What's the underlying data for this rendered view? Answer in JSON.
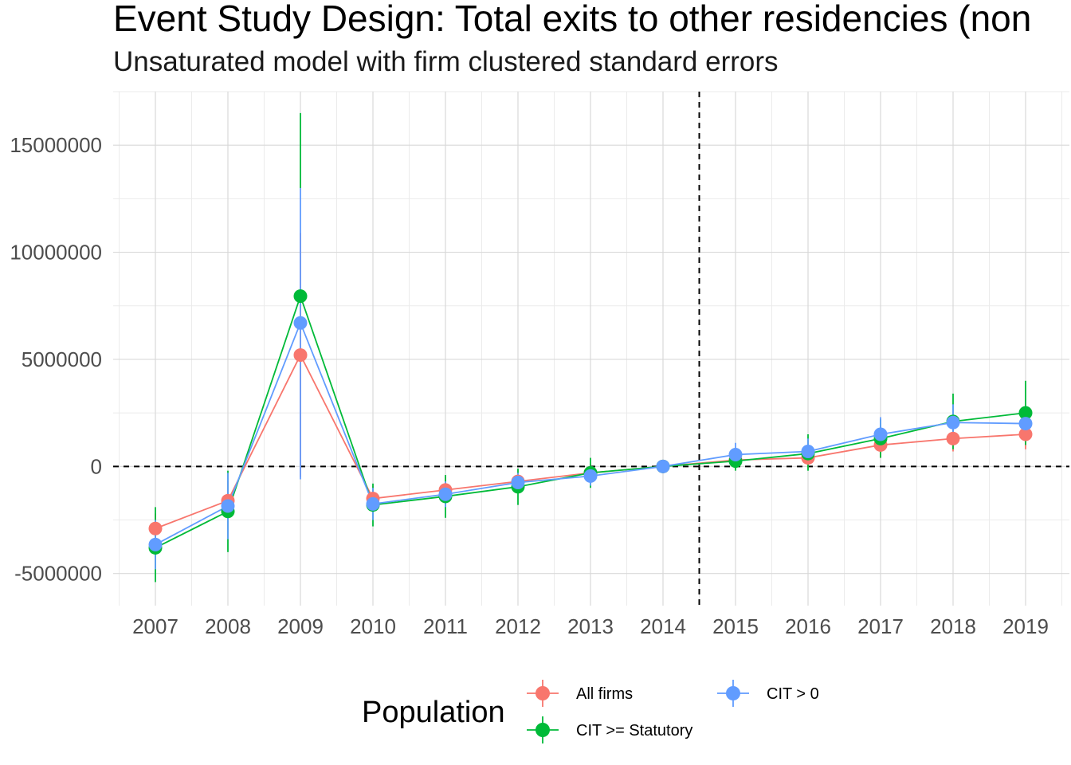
{
  "chart_data": {
    "type": "line",
    "title": "Event Study Design: Total exits to other residencies (non",
    "subtitle": "Unsaturated model with firm clustered standard errors",
    "xlabel": "",
    "ylabel": "",
    "categories": [
      "2007",
      "2008",
      "2009",
      "2010",
      "2011",
      "2012",
      "2013",
      "2014",
      "2015",
      "2016",
      "2017",
      "2018",
      "2019"
    ],
    "y_ticks": [
      -5000000,
      0,
      5000000,
      10000000,
      15000000
    ],
    "y_tick_labels": [
      "-5000000",
      "0",
      "5000000",
      "10000000",
      "15000000"
    ],
    "ylim": [
      -6500000,
      17500000
    ],
    "grid": true,
    "reference_lines": {
      "horizontal_at": 0,
      "vertical_between": [
        "2014",
        "2015"
      ]
    },
    "legend": {
      "title": "Population",
      "placement": "bottom",
      "entries": [
        "All firms",
        "CIT >= Statutory",
        "CIT > 0"
      ]
    },
    "series": [
      {
        "name": "All firms",
        "color": "#F8766D",
        "values": [
          -2900000,
          -1600000,
          5200000,
          -1500000,
          -1100000,
          -700000,
          -300000,
          0,
          300000,
          400000,
          1000000,
          1300000,
          1500000
        ],
        "ci_low": [
          -3600000,
          -2500000,
          -500000,
          -2100000,
          -1700000,
          -1100000,
          -700000,
          0,
          -100000,
          -100000,
          400000,
          700000,
          800000
        ],
        "ci_high": [
          -2200000,
          -700000,
          10900000,
          -900000,
          -500000,
          -300000,
          100000,
          0,
          700000,
          900000,
          1600000,
          1900000,
          2200000
        ]
      },
      {
        "name": "CIT >= Statutory",
        "color": "#00BA38",
        "values": [
          -3800000,
          -2100000,
          7950000,
          -1800000,
          -1400000,
          -950000,
          -300000,
          0,
          250000,
          600000,
          1300000,
          2100000,
          2500000
        ],
        "ci_low": [
          -5400000,
          -4000000,
          13000000,
          -2800000,
          -2400000,
          -1800000,
          -1000000,
          0,
          -200000,
          -200000,
          400000,
          800000,
          1000000
        ],
        "ci_high": [
          -1900000,
          -200000,
          16500000,
          -800000,
          -400000,
          -100000,
          400000,
          0,
          700000,
          1500000,
          2200000,
          3400000,
          4000000
        ]
      },
      {
        "name": "CIT > 0",
        "color": "#619CFF",
        "values": [
          -3650000,
          -1850000,
          6700000,
          -1750000,
          -1300000,
          -750000,
          -450000,
          0,
          550000,
          700000,
          1500000,
          2050000,
          2000000
        ],
        "ci_low": [
          -4800000,
          -3400000,
          -600000,
          -2500000,
          -1900000,
          -1200000,
          -900000,
          0,
          0,
          100000,
          700000,
          1200000,
          1200000
        ],
        "ci_high": [
          -2500000,
          -300000,
          13000000,
          -1000000,
          -700000,
          -300000,
          0,
          0,
          1100000,
          1300000,
          2300000,
          2900000,
          2800000
        ]
      }
    ]
  }
}
